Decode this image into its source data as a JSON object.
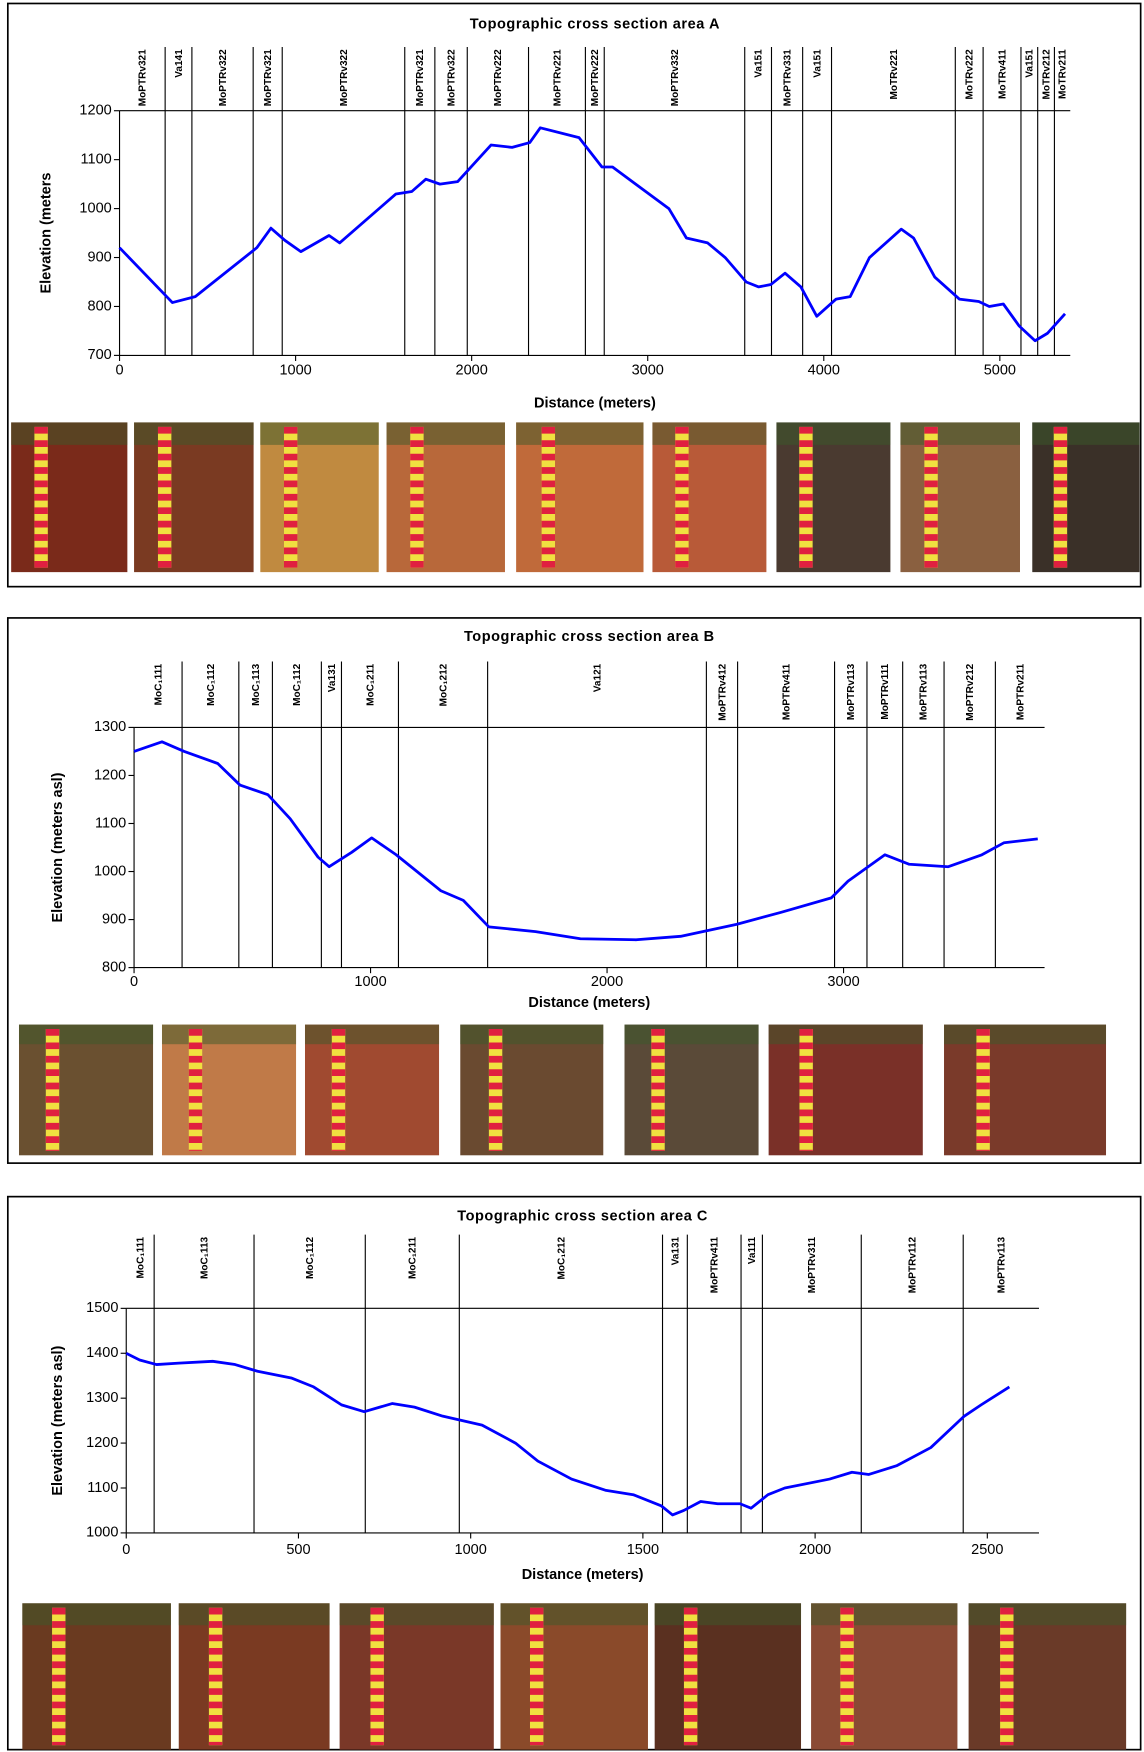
{
  "chart_data": [
    {
      "type": "line",
      "title": "Topographic cross section area A",
      "x_label": "Distance (meters)",
      "y_label": "Elevation  (meters",
      "x": [
        0,
        300,
        430,
        780,
        860,
        940,
        1030,
        1190,
        1250,
        1570,
        1660,
        1740,
        1820,
        1920,
        2110,
        2230,
        2330,
        2390,
        2610,
        2740,
        2800,
        3120,
        3220,
        3340,
        3440,
        3560,
        3630,
        3700,
        3780,
        3870,
        3960,
        4070,
        4150,
        4260,
        4440,
        4510,
        4630,
        4770,
        4880,
        4940,
        5020,
        5110,
        5200,
        5270,
        5370
      ],
      "series": [
        {
          "color": "#0000ff",
          "values": [
            920,
            808,
            820,
            920,
            960,
            935,
            912,
            945,
            930,
            1030,
            1035,
            1060,
            1050,
            1055,
            1130,
            1125,
            1135,
            1165,
            1145,
            1085,
            1085,
            1000,
            940,
            930,
            900,
            850,
            840,
            845,
            868,
            840,
            780,
            815,
            820,
            900,
            958,
            940,
            860,
            815,
            810,
            800,
            805,
            760,
            730,
            745,
            785
          ]
        }
      ],
      "xlim": [
        0,
        5400
      ],
      "ylim": [
        700,
        1200
      ],
      "xticks": [
        0,
        1000,
        2000,
        3000,
        4000,
        5000
      ],
      "yticks": [
        700,
        800,
        900,
        1000,
        1100,
        1200
      ],
      "boundaries": [
        259,
        411,
        759,
        924,
        1620,
        1791,
        1975,
        2323,
        2646,
        2753,
        3551,
        3703,
        3880,
        4044,
        4747,
        4905,
        5120,
        5215,
        5310
      ],
      "units": [
        "MoPTRv321",
        "Va141",
        "MoPTRv322",
        "MoPTRv321",
        "MoPTRv322",
        "MoPTRv321",
        "MoPTRv322",
        "MoPTRv222",
        "MoPTRv221",
        "MoPTRv222",
        "MoPTRv332",
        "Va151",
        "MoPTRv331",
        "Va151",
        "MoTRv221",
        "MoTRv222",
        "MoTRv411",
        "Va151",
        "MoTRv212",
        "MoTRv211"
      ]
    },
    {
      "type": "line",
      "title": "Topographic cross section area B",
      "x_label": "Distance (meters)",
      "y_label": "Elevation (meters asl)",
      "x": [
        0,
        118,
        212,
        354,
        448,
        566,
        660,
        778,
        825,
        920,
        1005,
        1108,
        1297,
        1392,
        1500,
        1698,
        1887,
        2123,
        2311,
        2547,
        2736,
        2948,
        3019,
        3175,
        3278,
        3443,
        3585,
        3679,
        3821
      ],
      "series": [
        {
          "color": "#0000ff",
          "values": [
            1250,
            1270,
            1250,
            1225,
            1180,
            1160,
            1110,
            1030,
            1010,
            1040,
            1070,
            1035,
            960,
            940,
            885,
            875,
            860,
            858,
            865,
            890,
            915,
            945,
            980,
            1035,
            1015,
            1010,
            1035,
            1060,
            1068
          ]
        }
      ],
      "xlim": [
        0,
        3850
      ],
      "ylim": [
        800,
        1300
      ],
      "xticks": [
        0,
        1000,
        2000,
        3000
      ],
      "yticks": [
        800,
        900,
        1000,
        1100,
        1200,
        1300
      ],
      "boundaries": [
        203,
        443,
        585,
        792,
        877,
        1118,
        1495,
        2420,
        2552,
        2962,
        3099,
        3250,
        3425,
        3642
      ],
      "units": [
        "MoC₁111",
        "MoC₁112",
        "MoC₁113",
        "MoC₁112",
        "Va131",
        "MoC₁211",
        "MoC₁212",
        "Va121",
        "MoPTRv412",
        "MoPTRv411",
        "MoPTRv113",
        "MoPTRv111",
        "MoPTRv113",
        "MoPTRv212",
        "MoPTRv211"
      ]
    },
    {
      "type": "line",
      "title": "Topographic cross section area C",
      "x_label": "Distance (meters)",
      "y_label": "Elevation (meters asl)",
      "x": [
        0,
        39,
        88,
        153,
        251,
        316,
        381,
        479,
        544,
        625,
        691,
        772,
        837,
        919,
        1033,
        1130,
        1195,
        1293,
        1391,
        1472,
        1554,
        1586,
        1619,
        1668,
        1717,
        1782,
        1814,
        1863,
        1912,
        2042,
        2107,
        2156,
        2238,
        2336,
        2433,
        2482,
        2564
      ],
      "series": [
        {
          "color": "#0000ff",
          "values": [
            1400,
            1385,
            1375,
            1378,
            1382,
            1375,
            1360,
            1345,
            1325,
            1285,
            1270,
            1288,
            1280,
            1260,
            1240,
            1200,
            1160,
            1120,
            1095,
            1085,
            1060,
            1040,
            1050,
            1070,
            1065,
            1065,
            1055,
            1085,
            1100,
            1120,
            1135,
            1130,
            1150,
            1190,
            1260,
            1285,
            1325
          ]
        }
      ],
      "xlim": [
        0,
        2650
      ],
      "ylim": [
        1000,
        1500
      ],
      "xticks": [
        0,
        500,
        1000,
        1500,
        2000,
        2500
      ],
      "yticks": [
        1000,
        1100,
        1200,
        1300,
        1400,
        1500
      ],
      "boundaries": [
        81,
        371,
        694,
        967,
        1557,
        1629,
        1785,
        1847,
        2134,
        2430
      ],
      "units": [
        "MoC₁111",
        "MoC₁113",
        "MoC₁112",
        "MoC₁211",
        "MoC₁212",
        "Va131",
        "MoPTRv411",
        "Va111",
        "MoPTRv311",
        "MoPTRv112",
        "MoPTRv113"
      ]
    }
  ]
}
